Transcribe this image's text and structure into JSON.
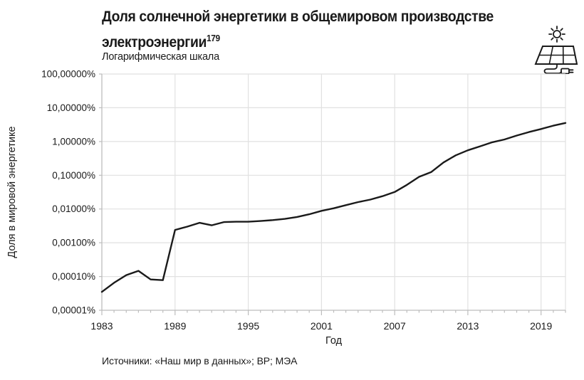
{
  "header": {
    "title_line1": "Доля солнечной энергетики в общемировом производстве",
    "title_line2": "электроэнергии",
    "title_superscript": "179",
    "subtitle": "Логарифмическая шкала"
  },
  "icon": {
    "name": "solar-panel-with-sun-and-plug-icon"
  },
  "colors": {
    "background": "#ffffff",
    "text": "#1a1a1a",
    "line": "#1a1a1a",
    "grid": "#e1e1e1",
    "axis": "#bdbdbd"
  },
  "chart_data": {
    "type": "line",
    "title": "Доля солнечной энергетики в общемировом производстве электроэнергии",
    "note_reference": "179",
    "subtitle": "Логарифмическая шкала",
    "xlabel": "Год",
    "ylabel": "Доля в мировой энергетике",
    "y_scale": "log",
    "grid": true,
    "legend": "none",
    "xlim": [
      1983,
      2021
    ],
    "ylim": [
      1e-05,
      100
    ],
    "x_ticks": [
      {
        "label": "1983",
        "year": 1983
      },
      {
        "label": "1989",
        "year": 1989
      },
      {
        "label": "1995",
        "year": 1995
      },
      {
        "label": "2001",
        "year": 2001
      },
      {
        "label": "2007",
        "year": 2007
      },
      {
        "label": "2013",
        "year": 2013
      },
      {
        "label": "2019",
        "year": 2019
      }
    ],
    "y_ticks": [
      {
        "label": "100,00000%",
        "value": 100
      },
      {
        "label": "10,00000%",
        "value": 10
      },
      {
        "label": "1,00000%",
        "value": 1
      },
      {
        "label": "0,10000%",
        "value": 0.1
      },
      {
        "label": "0,01000%",
        "value": 0.01
      },
      {
        "label": "0,00100%",
        "value": 0.001
      },
      {
        "label": "0,00010%",
        "value": 0.0001
      },
      {
        "label": "0,00001%",
        "value": 1e-05
      }
    ],
    "x": [
      1983,
      1984,
      1985,
      1986,
      1987,
      1988,
      1989,
      1990,
      1991,
      1992,
      1993,
      1994,
      1995,
      1996,
      1997,
      1998,
      1999,
      2000,
      2001,
      2002,
      2003,
      2004,
      2005,
      2006,
      2007,
      2008,
      2009,
      2010,
      2011,
      2012,
      2013,
      2014,
      2015,
      2016,
      2017,
      2018,
      2019,
      2020,
      2021
    ],
    "values": [
      3.5e-05,
      6.5e-05,
      0.00011,
      0.000147,
      8.2e-05,
      7.8e-05,
      0.0024,
      0.003,
      0.0039,
      0.0033,
      0.0041,
      0.0042,
      0.0042,
      0.0044,
      0.0047,
      0.0051,
      0.0058,
      0.007,
      0.0088,
      0.0105,
      0.013,
      0.016,
      0.019,
      0.024,
      0.032,
      0.052,
      0.09,
      0.125,
      0.24,
      0.39,
      0.55,
      0.72,
      0.95,
      1.15,
      1.5,
      1.9,
      2.35,
      2.95,
      3.55
    ],
    "units": "% мирового производства электроэнергии",
    "line_color": "#1a1a1a"
  },
  "footer": {
    "source": "Источники: «Наш мир в данных»; BP; МЭА"
  }
}
